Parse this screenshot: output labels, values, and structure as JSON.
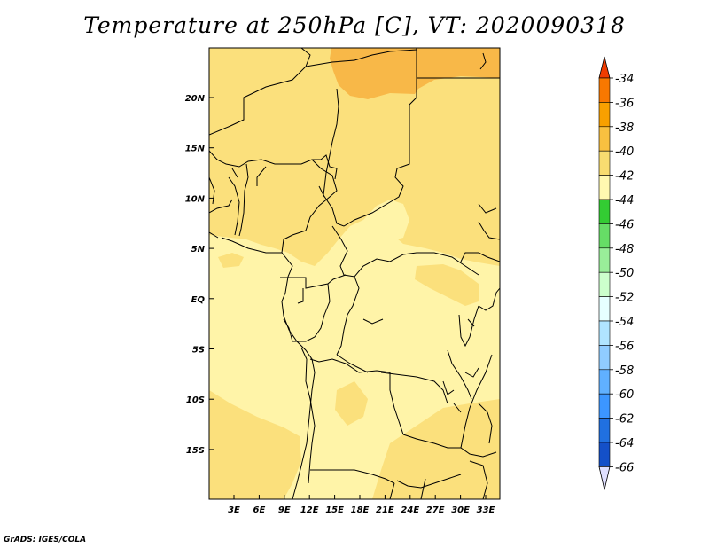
{
  "title": "Temperature at 250hPa [C], VT: 2020090318",
  "credit": "GrADS: IGES/COLA",
  "map": {
    "lon_labels": [
      "3E",
      "6E",
      "9E",
      "12E",
      "15E",
      "18E",
      "21E",
      "24E",
      "27E",
      "30E",
      "33E"
    ],
    "lat_labels": [
      "20N",
      "15N",
      "10N",
      "5N",
      "EQ",
      "5S",
      "10S",
      "15S"
    ]
  },
  "legend": {
    "labels": [
      "-34",
      "-36",
      "-38",
      "-40",
      "-42",
      "-44",
      "-46",
      "-48",
      "-50",
      "-52",
      "-54",
      "-56",
      "-58",
      "-60",
      "-62",
      "-64",
      "-66"
    ],
    "colors": [
      "#f03c00",
      "#f87800",
      "#f8a000",
      "#f8c040",
      "#f8dc70",
      "#fff8b0",
      "#33cc33",
      "#66dd66",
      "#99ee99",
      "#ccffcc",
      "#e6ffff",
      "#b0e4ff",
      "#90ccff",
      "#60b0ff",
      "#3c96ff",
      "#2070e0",
      "#1450c8",
      "#0a30a0",
      "#000070"
    ],
    "top_color": "#f03c00",
    "bottom_color": "#e0e0ff"
  },
  "colors": {
    "level_40": "#fbe07c",
    "level_42": "#fff4a8",
    "level_38": "#f8b848"
  }
}
